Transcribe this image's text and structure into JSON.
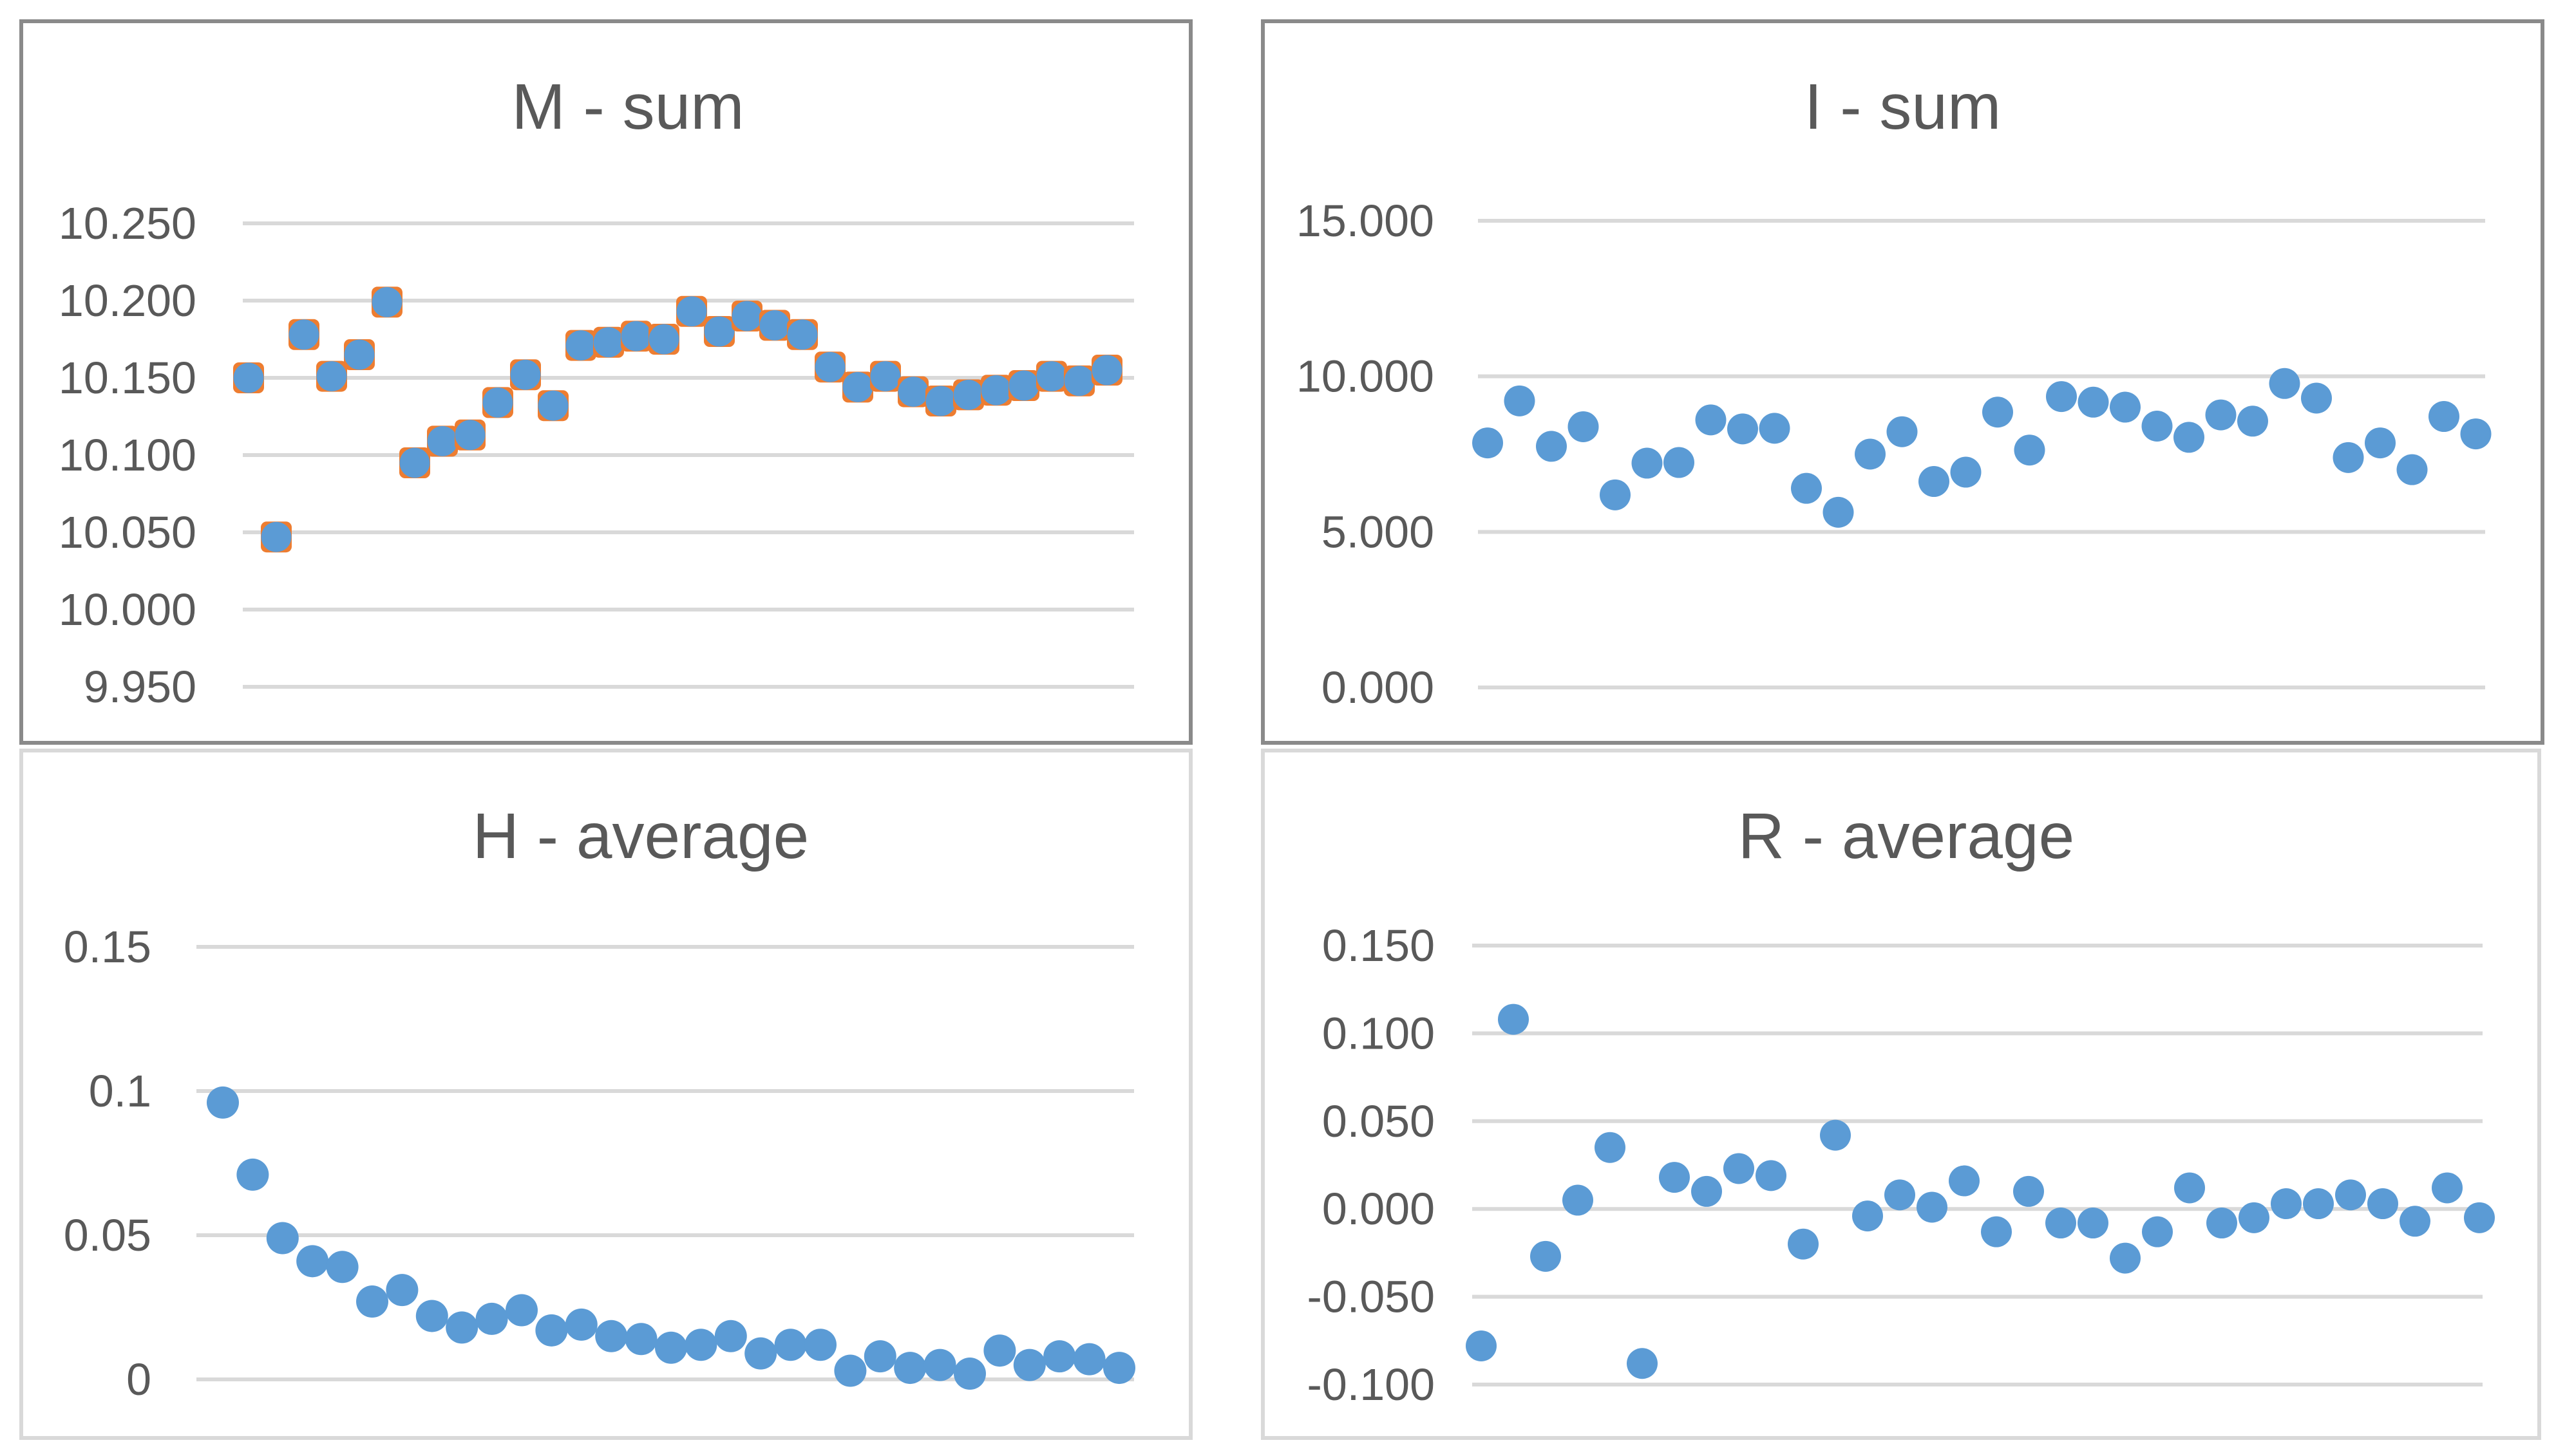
{
  "colors": {
    "background": "#ffffff",
    "text": "#595959",
    "gridline": "#d9d9d9",
    "panel_border_dark": "#8a8a8a",
    "panel_border_light": "#d9d9d9",
    "marker_blue": "#5B9BD5",
    "marker_orange": "#ED7D31"
  },
  "chart_data": [
    {
      "id": "m-sum",
      "type": "scatter",
      "title": "M - sum",
      "legend": "none",
      "grid": true,
      "marker": {
        "shape": "square-with-circle",
        "square_color": "#ED7D31",
        "circle_color": "#5B9BD5",
        "size": 48
      },
      "x_axis": {
        "visible": false,
        "x_values": "sequential 1..32, unlabeled"
      },
      "y_axis": {
        "min": 9.95,
        "max": 10.25,
        "tick_step": 0.05,
        "tick_labels": [
          "10.250",
          "10.200",
          "10.150",
          "10.100",
          "10.050",
          "10.000",
          "9.950"
        ]
      },
      "values": [
        10.15,
        10.047,
        10.178,
        10.151,
        10.165,
        10.199,
        10.095,
        10.109,
        10.113,
        10.134,
        10.152,
        10.132,
        10.171,
        10.173,
        10.177,
        10.175,
        10.193,
        10.18,
        10.19,
        10.184,
        10.178,
        10.157,
        10.144,
        10.151,
        10.141,
        10.135,
        10.139,
        10.142,
        10.145,
        10.151,
        10.148,
        10.155
      ]
    },
    {
      "id": "i-sum",
      "type": "scatter",
      "title": "I - sum",
      "legend": "none",
      "grid": true,
      "marker": {
        "shape": "circle",
        "circle_color": "#5B9BD5",
        "size": 48
      },
      "x_axis": {
        "visible": false,
        "x_values": "sequential 1..32, unlabeled"
      },
      "y_axis": {
        "min": 0,
        "max": 15,
        "tick_step": 5,
        "tick_labels": [
          "15.000",
          "10.000",
          "5.000",
          "0.000"
        ]
      },
      "values": [
        7.86,
        9.21,
        7.75,
        8.38,
        6.19,
        7.21,
        7.23,
        8.6,
        8.31,
        8.33,
        6.4,
        5.63,
        7.5,
        8.22,
        6.62,
        6.92,
        8.85,
        7.63,
        9.35,
        9.17,
        9.01,
        8.4,
        8.04,
        8.76,
        8.56,
        9.77,
        9.3,
        7.39,
        7.86,
        7.0,
        8.71,
        8.15
      ]
    },
    {
      "id": "h-average",
      "type": "scatter",
      "title": "H - average",
      "legend": "none",
      "grid": true,
      "marker": {
        "shape": "circle",
        "circle_color": "#5B9BD5",
        "size": 50
      },
      "x_axis": {
        "visible": false,
        "x_values": "sequential 1..31, unlabeled"
      },
      "y_axis": {
        "min": 0,
        "max": 0.15,
        "tick_step": 0.05,
        "tick_labels": [
          "0.15",
          "0.1",
          "0.05",
          "0"
        ]
      },
      "values": [
        0.096,
        0.071,
        0.049,
        0.041,
        0.039,
        0.027,
        0.031,
        0.022,
        0.018,
        0.021,
        0.024,
        0.017,
        0.019,
        0.015,
        0.014,
        0.011,
        0.012,
        0.015,
        0.009,
        0.012,
        0.012,
        0.003,
        0.008,
        0.004,
        0.005,
        0.002,
        0.01,
        0.005,
        0.008,
        0.007,
        0.004
      ]
    },
    {
      "id": "r-average",
      "type": "scatter",
      "title": "R - average",
      "legend": "none",
      "grid": true,
      "marker": {
        "shape": "circle",
        "circle_color": "#5B9BD5",
        "size": 48
      },
      "x_axis": {
        "visible": false,
        "x_values": "sequential 1..32, unlabeled"
      },
      "y_axis": {
        "min": -0.1,
        "max": 0.15,
        "tick_step": 0.05,
        "tick_labels": [
          "0.150",
          "0.100",
          "0.050",
          "0.000",
          "-0.050",
          "-0.100"
        ]
      },
      "values": [
        -0.078,
        0.108,
        -0.027,
        0.005,
        0.035,
        -0.088,
        0.018,
        0.01,
        0.023,
        0.019,
        -0.02,
        0.042,
        -0.004,
        0.008,
        0.001,
        0.016,
        -0.013,
        0.01,
        -0.008,
        -0.008,
        -0.028,
        -0.013,
        0.012,
        -0.008,
        -0.005,
        0.003,
        0.003,
        0.008,
        0.003,
        -0.007,
        0.012,
        -0.005
      ]
    }
  ]
}
